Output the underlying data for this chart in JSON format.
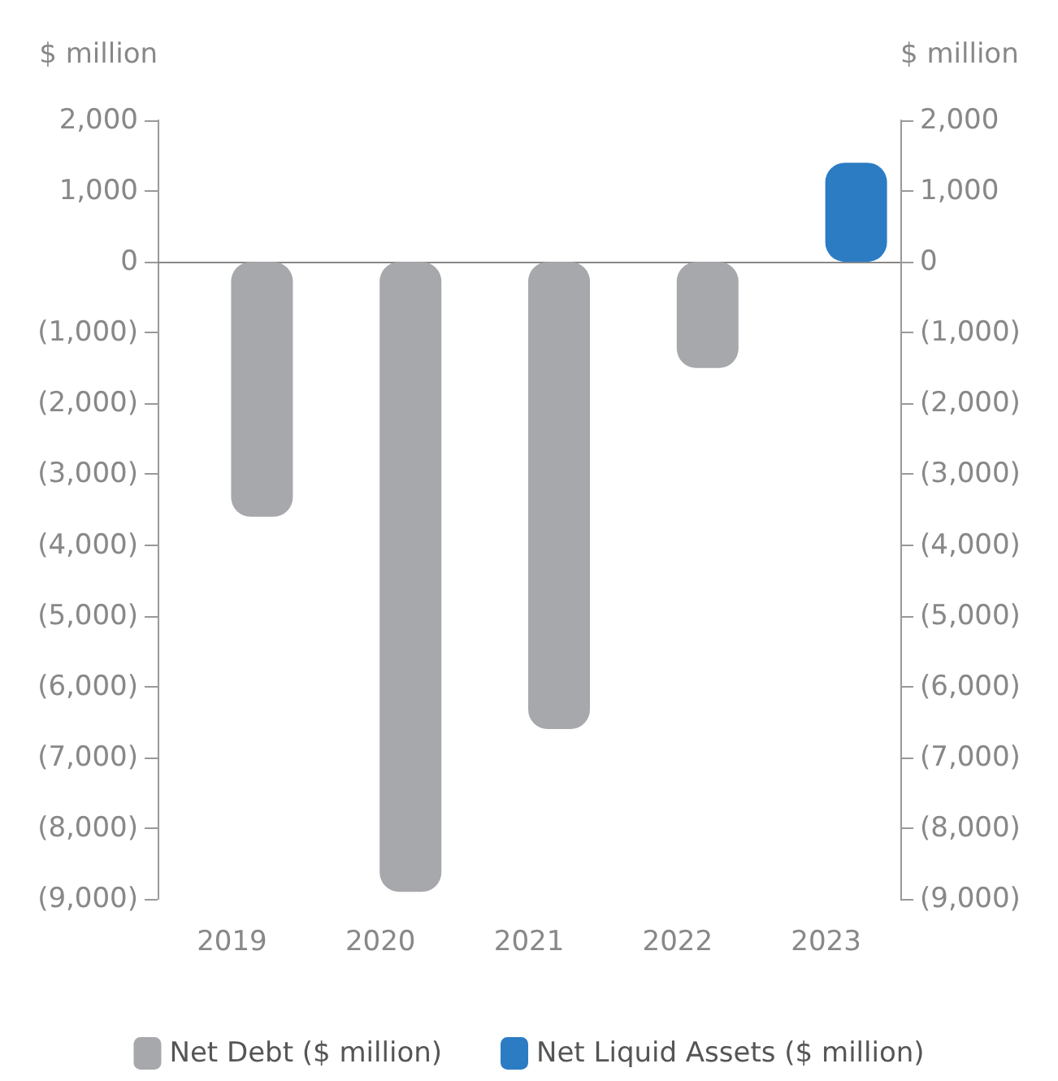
{
  "chart_data": {
    "type": "bar",
    "ylabel": "$ million",
    "y2label": "$ million",
    "categories": [
      "2019",
      "2020",
      "2021",
      "2022",
      "2023"
    ],
    "series": [
      {
        "name": "Net Debt ($ million)",
        "color": "#a7a8ab",
        "values": [
          -3600,
          -8900,
          -6600,
          -1500,
          null
        ]
      },
      {
        "name": "Net Liquid Assets ($ million)",
        "color": "#2c7cc4",
        "values": [
          null,
          null,
          null,
          null,
          1400
        ]
      }
    ],
    "ylim": [
      -9000,
      2000
    ],
    "yticks": [
      {
        "value": 2000,
        "label": "2,000"
      },
      {
        "value": 1000,
        "label": "1,000"
      },
      0,
      {
        "value": -1000,
        "label": "(1,000)"
      },
      {
        "value": -2000,
        "label": "(2,000)"
      },
      {
        "value": -3000,
        "label": "(3,000)"
      },
      {
        "value": -4000,
        "label": "(4,000)"
      },
      {
        "value": -5000,
        "label": "(5,000)"
      },
      {
        "value": -6000,
        "label": "(6,000)"
      },
      {
        "value": -7000,
        "label": "(7,000)"
      },
      {
        "value": -8000,
        "label": "(8,000)"
      },
      {
        "value": -9000,
        "label": "(9,000)"
      }
    ],
    "y2lim": [
      -9000,
      2000
    ],
    "y2ticks": [
      {
        "value": 2000,
        "label": "2,000"
      },
      {
        "value": 1000,
        "label": "1,000"
      },
      0,
      {
        "value": -1000,
        "label": "(1,000)"
      },
      {
        "value": -2000,
        "label": "(2,000)"
      },
      {
        "value": -3000,
        "label": "(3,000)"
      },
      {
        "value": -4000,
        "label": "(4,000)"
      },
      {
        "value": -5000,
        "label": "(5,000)"
      },
      {
        "value": -6000,
        "label": "(6,000)"
      },
      {
        "value": -7000,
        "label": "(7,000)"
      },
      {
        "value": -8000,
        "label": "(8,000)"
      },
      {
        "value": -9000,
        "label": "(9,000)"
      }
    ],
    "legend": "bottom"
  }
}
